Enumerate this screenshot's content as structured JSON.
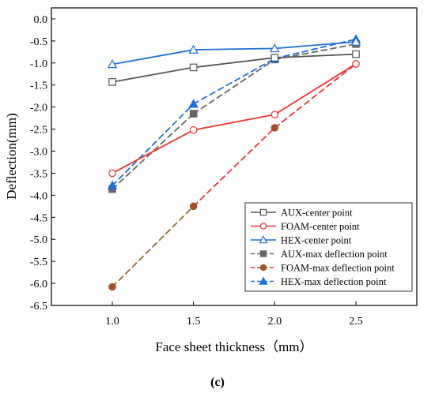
{
  "chart_data": {
    "type": "line",
    "xlabel": "Face sheet thickness（mm）",
    "ylabel": "Deflection(mm)",
    "caption": "(c)",
    "x": [
      1.0,
      1.5,
      2.0,
      2.5
    ],
    "x_ticks": [
      "1.0",
      "1.5",
      "2.0",
      "2.5"
    ],
    "xlim": [
      0.625,
      2.875
    ],
    "ylim": [
      -6.5,
      0.25
    ],
    "y_ticks": [
      "0.0",
      "-0.5",
      "-1.0",
      "-1.5",
      "-2.0",
      "-2.5",
      "-3.0",
      "-3.5",
      "-4.0",
      "-4.5",
      "-5.0",
      "-5.5",
      "-6.0",
      "-6.5"
    ],
    "legend_position": "bottom-right",
    "series": [
      {
        "name": "AUX-center point",
        "values": [
          -1.43,
          -1.1,
          -0.88,
          -0.8
        ],
        "color": "#555555",
        "dash": "solid",
        "marker": "square",
        "filled": false
      },
      {
        "name": "FOAM-center point",
        "values": [
          -3.5,
          -2.52,
          -2.17,
          -1.02
        ],
        "color": "#ee3333",
        "dash": "solid",
        "marker": "circle",
        "filled": false
      },
      {
        "name": "HEX-center point",
        "values": [
          -1.03,
          -0.7,
          -0.67,
          -0.52
        ],
        "color": "#1f6fd6",
        "dash": "solid",
        "marker": "triangle",
        "filled": false
      },
      {
        "name": "AUX-max deflection point",
        "values": [
          -3.86,
          -2.15,
          -0.92,
          -0.57
        ],
        "color": "#666666",
        "dash": "dashed",
        "marker": "square",
        "filled": true
      },
      {
        "name": "FOAM-max deflection point",
        "values": [
          -6.08,
          -4.25,
          -2.47,
          -1.02
        ],
        "color": "#ee3333",
        "dash": "dashed",
        "marker": "circle",
        "filled": true,
        "marker_color": "#a0522d",
        "line_colors": [
          "#8b6b2a",
          "#ee3333",
          "#ee3333"
        ]
      },
      {
        "name": "HEX-max deflection point",
        "values": [
          -3.78,
          -1.93,
          -0.9,
          -0.46
        ],
        "color": "#1f6fd6",
        "dash": "dashed",
        "marker": "triangle",
        "filled": true
      }
    ]
  }
}
